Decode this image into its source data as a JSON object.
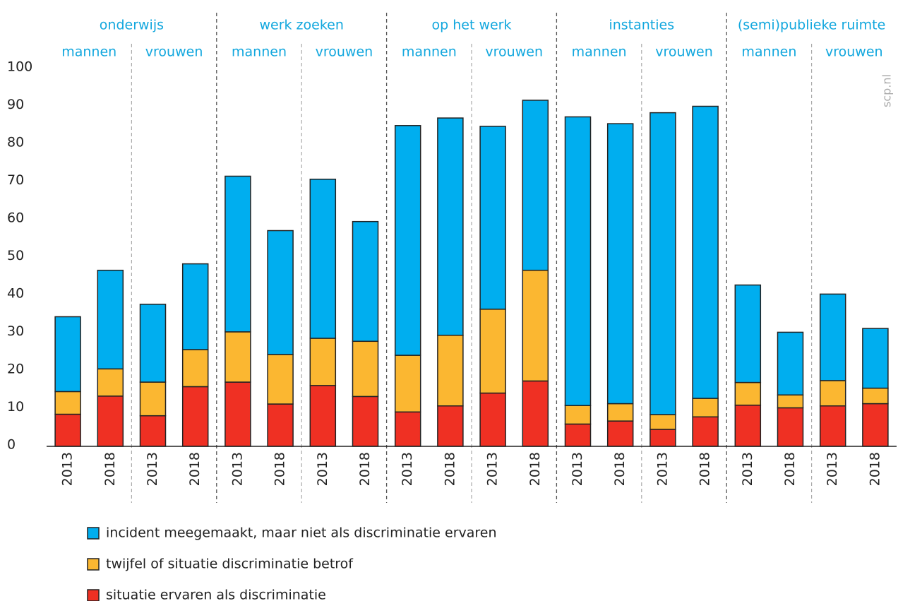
{
  "chart_data": {
    "type": "stacked_bar",
    "categories": [
      "2013",
      "2018",
      "2013",
      "2018",
      "2013",
      "2018",
      "2013",
      "2018",
      "2013",
      "2018",
      "2013",
      "2018",
      "2013",
      "2018",
      "2013",
      "2018",
      "2013",
      "2018",
      "2013",
      "2018"
    ],
    "groups": [
      {
        "name": "onderwijs",
        "subgroups": [
          "mannen",
          "vrouwen"
        ]
      },
      {
        "name": "werk zoeken",
        "subgroups": [
          "mannen",
          "vrouwen"
        ]
      },
      {
        "name": "op het werk",
        "subgroups": [
          "mannen",
          "vrouwen"
        ]
      },
      {
        "name": "instanties",
        "subgroups": [
          "mannen",
          "vrouwen"
        ]
      },
      {
        "name": "(semi)publieke ruimte",
        "subgroups": [
          "mannen",
          "vrouwen"
        ]
      }
    ],
    "series": [
      {
        "name": "situatie ervaren als discriminatie",
        "color": "#ef3023",
        "values": [
          8.5,
          13.3,
          8.1,
          15.8,
          17,
          11.2,
          16.1,
          13.2,
          9.1,
          10.7,
          14.1,
          17.3,
          5.9,
          6.7,
          4.5,
          7.8,
          10.9,
          10.2,
          10.7,
          11.3
        ]
      },
      {
        "name": "twijfel of situatie discriminatie betrof",
        "color": "#fbb731",
        "values": [
          6,
          7.2,
          8.9,
          9.8,
          13.3,
          13.1,
          12.5,
          14.6,
          15,
          18.7,
          22.2,
          29.3,
          4.9,
          4.6,
          3.9,
          4.9,
          6,
          3.4,
          6.7,
          4.1
        ]
      },
      {
        "name": "incident meegemaakt, maar niet als discriminatie ervaren",
        "color": "#00aeef",
        "values": [
          19.8,
          26.1,
          20.6,
          22.7,
          41.2,
          32.8,
          42.1,
          31.7,
          60.8,
          57.5,
          48.4,
          45,
          76.4,
          74.1,
          79.9,
          77.3,
          25.8,
          16.6,
          22.9,
          15.8
        ]
      }
    ],
    "ylim": [
      0,
      100
    ],
    "yticks": [
      0,
      10,
      20,
      30,
      40,
      50,
      60,
      70,
      80,
      90,
      100
    ],
    "source": "scp.nl"
  }
}
